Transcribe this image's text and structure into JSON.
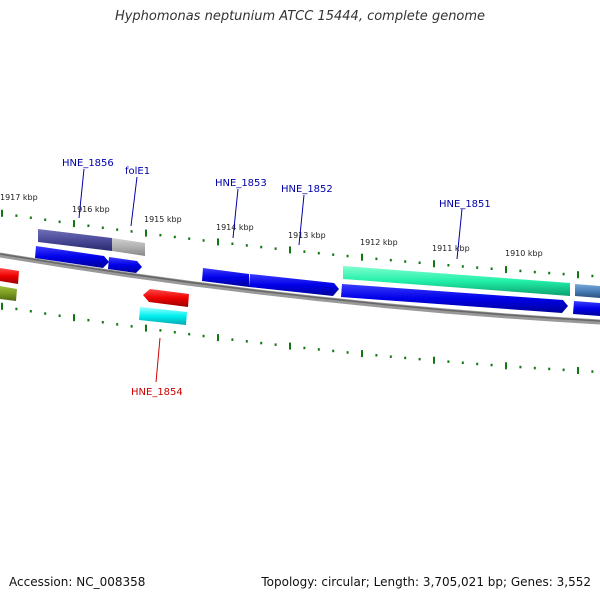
{
  "title": "Hyphomonas neptunium ATCC 15444, complete genome",
  "footer": {
    "accession": "Accession: NC_008358",
    "summary": "Topology: circular; Length: 3,705,021 bp; Genes: 3,552"
  },
  "kbp_ticks": [
    "1917 kbp",
    "1916 kbp",
    "1915 kbp",
    "1914 kbp",
    "1913 kbp",
    "1912 kbp",
    "1911 kbp",
    "1910 kbp"
  ],
  "gene_labels": [
    {
      "id": "HNE_1856",
      "strand": "forward"
    },
    {
      "id": "folE1",
      "strand": "forward"
    },
    {
      "id": "HNE_1853",
      "strand": "forward"
    },
    {
      "id": "HNE_1852",
      "strand": "forward"
    },
    {
      "id": "HNE_1851",
      "strand": "forward"
    },
    {
      "id": "HNE_1854",
      "strand": "reverse"
    }
  ],
  "colors": {
    "forward_label": "#0000aa",
    "reverse_label": "#cc0000",
    "tick": "#117711",
    "backbone": "#777777",
    "cds_forward": "#0000ee",
    "cds_reverse": "#ee0000"
  }
}
